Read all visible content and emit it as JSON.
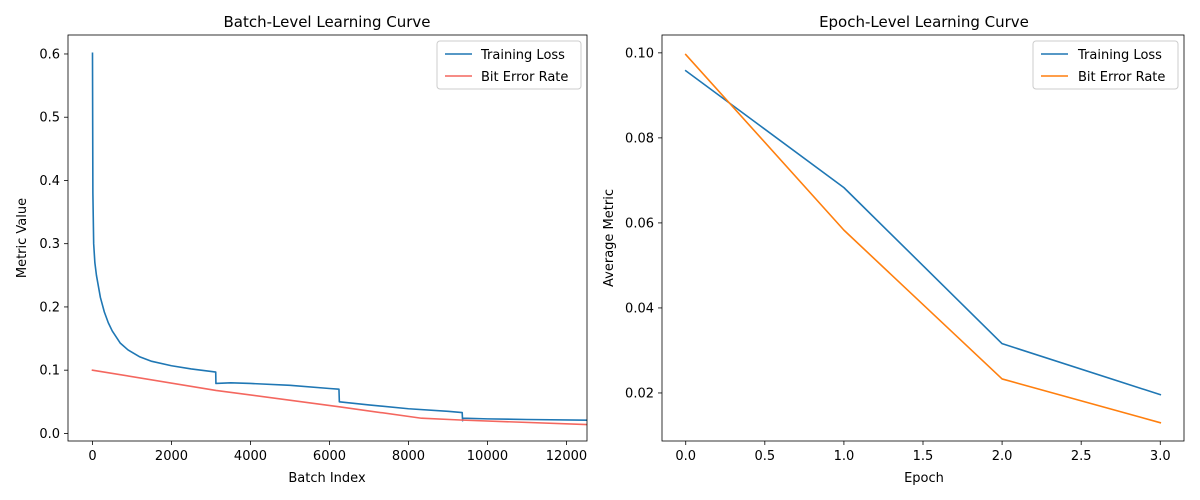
{
  "chart_data": [
    {
      "type": "line",
      "title": "Batch-Level Learning Curve",
      "xlabel": "Batch Index",
      "ylabel": "Metric Value",
      "xlim": [
        -620,
        12520
      ],
      "ylim": [
        -0.012,
        0.63
      ],
      "xticks": [
        0,
        2000,
        4000,
        6000,
        8000,
        10000,
        12000
      ],
      "xtick_labels": [
        "0",
        "2000",
        "4000",
        "6000",
        "8000",
        "10000",
        "12000"
      ],
      "yticks": [
        0.0,
        0.1,
        0.2,
        0.3,
        0.4,
        0.5,
        0.6
      ],
      "ytick_labels": [
        "0.0",
        "0.1",
        "0.2",
        "0.3",
        "0.4",
        "0.5",
        "0.6"
      ],
      "grid": false,
      "legend_position": "top-right",
      "series": [
        {
          "name": "Training Loss",
          "color": "#1f77b4",
          "points": [
            [
              0,
              0.601
            ],
            [
              10,
              0.38
            ],
            [
              30,
              0.3
            ],
            [
              60,
              0.27
            ],
            [
              100,
              0.25
            ],
            [
              200,
              0.215
            ],
            [
              300,
              0.192
            ],
            [
              400,
              0.175
            ],
            [
              500,
              0.162
            ],
            [
              700,
              0.143
            ],
            [
              900,
              0.132
            ],
            [
              1200,
              0.121
            ],
            [
              1500,
              0.114
            ],
            [
              2000,
              0.107
            ],
            [
              2500,
              0.102
            ],
            [
              3000,
              0.098
            ],
            [
              3120,
              0.097
            ],
            [
              3125,
              0.079
            ],
            [
              3500,
              0.08
            ],
            [
              4000,
              0.079
            ],
            [
              5000,
              0.076
            ],
            [
              6000,
              0.071
            ],
            [
              6240,
              0.07
            ],
            [
              6250,
              0.05
            ],
            [
              7000,
              0.045
            ],
            [
              8000,
              0.039
            ],
            [
              9000,
              0.035
            ],
            [
              9360,
              0.033
            ],
            [
              9370,
              0.02
            ],
            [
              9375,
              0.024
            ],
            [
              10000,
              0.023
            ],
            [
              11000,
              0.022
            ],
            [
              12500,
              0.021
            ]
          ]
        },
        {
          "name": "Bit Error Rate",
          "color": "#f4675f",
          "points": [
            [
              0,
              0.1
            ],
            [
              3125,
              0.068
            ],
            [
              6250,
              0.042
            ],
            [
              8330,
              0.024
            ],
            [
              9375,
              0.021
            ],
            [
              12500,
              0.014
            ]
          ]
        }
      ]
    },
    {
      "type": "line",
      "title": "Epoch-Level Learning Curve",
      "xlabel": "Epoch",
      "ylabel": "Average Metric",
      "xlim": [
        -0.15,
        3.15
      ],
      "ylim": [
        0.0087,
        0.1042
      ],
      "xticks": [
        0.0,
        0.5,
        1.0,
        1.5,
        2.0,
        2.5,
        3.0
      ],
      "xtick_labels": [
        "0.0",
        "0.5",
        "1.0",
        "1.5",
        "2.0",
        "2.5",
        "3.0"
      ],
      "yticks": [
        0.02,
        0.04,
        0.06,
        0.08,
        0.1
      ],
      "ytick_labels": [
        "0.02",
        "0.04",
        "0.06",
        "0.08",
        "0.10"
      ],
      "grid": false,
      "legend_position": "top-right",
      "series": [
        {
          "name": "Training Loss",
          "color": "#1f77b4",
          "points": [
            [
              0,
              0.0958
            ],
            [
              1,
              0.0683
            ],
            [
              2,
              0.0316
            ],
            [
              3,
              0.0196
            ]
          ]
        },
        {
          "name": "Bit Error Rate",
          "color": "#ff7f0e",
          "points": [
            [
              0,
              0.0996
            ],
            [
              1,
              0.0583
            ],
            [
              2,
              0.0233
            ],
            [
              3,
              0.013
            ]
          ]
        }
      ]
    }
  ]
}
